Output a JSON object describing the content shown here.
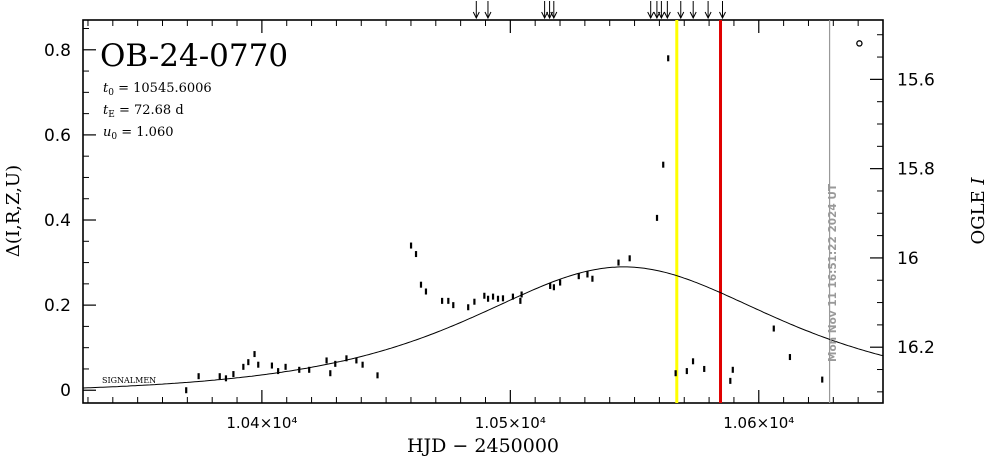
{
  "chart_data": {
    "type": "scatter",
    "title": "OB-24-0770",
    "params": [
      {
        "sym": "t",
        "sub": "0",
        "text": " = 10545.6006"
      },
      {
        "sym": "t",
        "sub": "E",
        "text": " = 72.68 d"
      },
      {
        "sym": "u",
        "sub": "0",
        "text": " = 1.060"
      }
    ],
    "xlabel": "HJD − 2450000",
    "ylabel_left": "Δ(I,R,Z,U)",
    "ylabel_right": "OGLE I",
    "x_range": [
      10328,
      10650
    ],
    "y_left_range": [
      -0.03,
      0.87
    ],
    "y_right_range": [
      16.325,
      15.467
    ],
    "x_ticks": [
      {
        "value": 10400,
        "label": "1.04×10⁴"
      },
      {
        "value": 10500,
        "label": "1.05×10⁴"
      },
      {
        "value": 10600,
        "label": "1.06×10⁴"
      }
    ],
    "y_left_ticks": [
      {
        "value": 0,
        "label": "0"
      },
      {
        "value": 0.2,
        "label": "0.2"
      },
      {
        "value": 0.4,
        "label": "0.4"
      },
      {
        "value": 0.6,
        "label": "0.6"
      },
      {
        "value": 0.8,
        "label": "0.8"
      }
    ],
    "y_right_ticks": [
      {
        "value": 15.6,
        "label": "15.6"
      },
      {
        "value": 15.8,
        "label": "15.8"
      },
      {
        "value": 16.0,
        "label": "16"
      },
      {
        "value": 16.2,
        "label": "16.2"
      }
    ],
    "series": [
      {
        "points": [
          [
            10369.5,
            0.0
          ],
          [
            10374.5,
            0.033
          ],
          [
            10383.0,
            0.033
          ],
          [
            10385.5,
            0.028
          ],
          [
            10388.5,
            0.038
          ],
          [
            10392.5,
            0.055
          ],
          [
            10394.5,
            0.066
          ],
          [
            10397.0,
            0.085
          ],
          [
            10398.5,
            0.06
          ],
          [
            10404.0,
            0.058
          ],
          [
            10406.5,
            0.045
          ],
          [
            10409.5,
            0.055
          ],
          [
            10415.0,
            0.048
          ],
          [
            10419.0,
            0.048
          ],
          [
            10426.0,
            0.07
          ],
          [
            10427.5,
            0.04
          ],
          [
            10429.5,
            0.062
          ],
          [
            10434.0,
            0.075
          ],
          [
            10438.0,
            0.07
          ],
          [
            10440.5,
            0.06
          ],
          [
            10446.5,
            0.035
          ],
          [
            10460.0,
            0.34
          ],
          [
            10462.0,
            0.32
          ],
          [
            10464.0,
            0.248
          ],
          [
            10466.0,
            0.232
          ],
          [
            10472.5,
            0.21
          ],
          [
            10475.0,
            0.21
          ],
          [
            10477.0,
            0.2
          ],
          [
            10483.0,
            0.195
          ],
          [
            10485.5,
            0.208
          ],
          [
            10489.5,
            0.222
          ],
          [
            10491.0,
            0.215
          ],
          [
            10493.0,
            0.22
          ],
          [
            10495.0,
            0.215
          ],
          [
            10497.0,
            0.216
          ],
          [
            10501.0,
            0.22
          ],
          [
            10504.0,
            0.21
          ],
          [
            10504.5,
            0.225
          ],
          [
            10516.0,
            0.245
          ],
          [
            10517.5,
            0.242
          ],
          [
            10520.0,
            0.253
          ],
          [
            10527.5,
            0.268
          ],
          [
            10531.0,
            0.272
          ],
          [
            10533.0,
            0.262
          ],
          [
            10543.5,
            0.3
          ],
          [
            10548.0,
            0.31
          ],
          [
            10559.0,
            0.405
          ],
          [
            10561.5,
            0.53
          ],
          [
            10563.5,
            0.78
          ],
          [
            10566.5,
            0.04
          ],
          [
            10571.0,
            0.045
          ],
          [
            10573.5,
            0.068
          ],
          [
            10578.0,
            0.05
          ],
          [
            10588.5,
            0.022
          ],
          [
            10589.5,
            0.048
          ],
          [
            10606.0,
            0.145
          ],
          [
            10612.5,
            0.078
          ],
          [
            10625.5,
            0.025
          ]
        ]
      }
    ],
    "outlier_point": [
      10640.5,
      0.815
    ],
    "model_curve": {
      "type": "paczynski",
      "t0": 10545.6006,
      "tE": 72.68,
      "u0": 1.06,
      "mag_base": 16.3065,
      "blend_frac": 1.0
    },
    "vertical_lines": [
      {
        "x": 10567.0,
        "color": "#ffff00"
      },
      {
        "x": 10584.6,
        "color": "#e00000"
      },
      {
        "x": 10628.5,
        "color": "#999999"
      }
    ],
    "arrows_top_x": [
      10486.3,
      10491.0,
      10513.8,
      10515.8,
      10517.5,
      10556.5,
      10559.0,
      10560.8,
      10563.2,
      10568.6,
      10573.6,
      10579.6,
      10585.4
    ],
    "left_text": "SIGNALMEN",
    "timestamp": "Mon Nov 11 16:51:22 2024 UT",
    "colors": {
      "yellow_line": "#ffff00",
      "red_line": "#e00000",
      "gray_line": "#999999",
      "points": "#000000"
    }
  }
}
